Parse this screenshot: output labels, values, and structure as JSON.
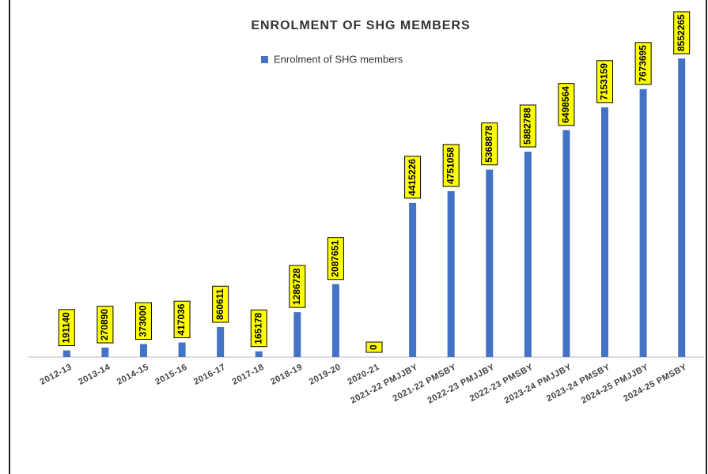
{
  "chart_data": {
    "type": "bar",
    "title": "ENROLMENT OF SHG MEMBERS",
    "categories": [
      "2012-13",
      "2013-14",
      "2014-15",
      "2015-16",
      "2016-17",
      "2017-18",
      "2018-19",
      "2019-20",
      "2020-21",
      "2021-22 PMJJBY",
      "2021-22 PMSBY",
      "2022-23 PMJJBY",
      "2022-23 PMSBY",
      "2023-24 PMJJBY",
      "2023-24 PMSBY",
      "2024-25 PMJJBY",
      "2024-25 PMSBY"
    ],
    "series": [
      {
        "name": "Enrolment of SHG members",
        "color": "#4472c4",
        "values": [
          191140,
          270890,
          373000,
          417036,
          860611,
          165178,
          1286728,
          2087651,
          0,
          4415226,
          4751058,
          5368878,
          5882788,
          6498564,
          7153159,
          7673695,
          8552265
        ]
      }
    ],
    "ylim": [
      0,
      10000000
    ],
    "legend": "top"
  }
}
